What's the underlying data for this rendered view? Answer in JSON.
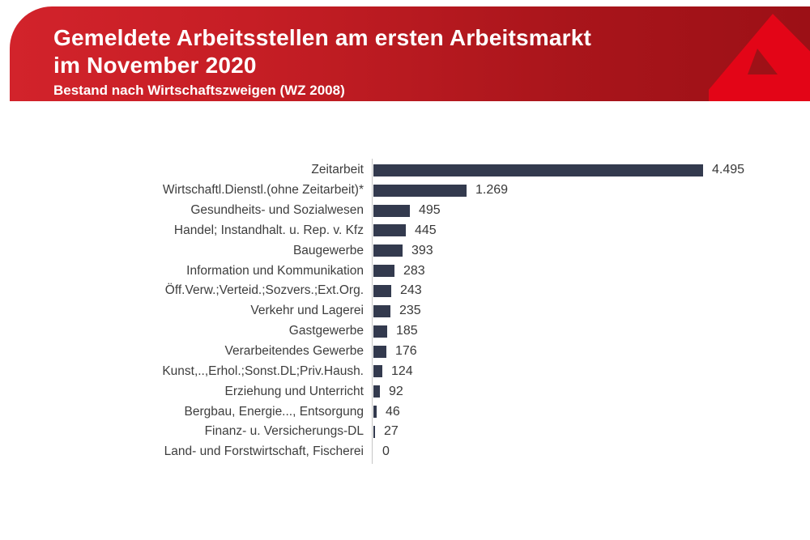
{
  "page": {
    "background": "#ffffff"
  },
  "header": {
    "title_line1": "Gemeldete Arbeitsstellen am ersten Arbeitsmarkt",
    "title_line2": "im November 2020",
    "subtitle": "Bestand nach Wirtschaftszweigen (WZ 2008)",
    "banner_color_left": "#d2232b",
    "banner_color_right": "#9c1016",
    "text_color": "#ffffff",
    "logo": "bundesagentur-fuer-arbeit-a-icon",
    "logo_color": "#e30517"
  },
  "chart_data": {
    "type": "bar",
    "orientation": "horizontal",
    "title": "Gemeldete Arbeitsstellen am ersten Arbeitsmarkt im November 2020",
    "subtitle": "Bestand nach Wirtschaftszweigen (WZ 2008)",
    "categories": [
      "Zeitarbeit",
      "Wirtschaftl.Dienstl.(ohne Zeitarbeit)*",
      "Gesundheits- und Sozialwesen",
      "Handel; Instandhalt. u. Rep. v. Kfz",
      "Baugewerbe",
      "Information und Kommunikation",
      "Öff.Verw.;Verteid.;Sozvers.;Ext.Org.",
      "Verkehr und Lagerei",
      "Gastgewerbe",
      "Verarbeitendes Gewerbe",
      "Kunst,..,Erhol.;Sonst.DL;Priv.Haush.",
      "Erziehung und Unterricht",
      "Bergbau, Energie..., Entsorgung",
      "Finanz- u. Versicherungs-DL",
      "Land- und Forstwirtschaft, Fischerei"
    ],
    "values": [
      4495,
      1269,
      495,
      445,
      393,
      283,
      243,
      235,
      185,
      176,
      124,
      92,
      46,
      27,
      0
    ],
    "value_labels": [
      "4.495",
      "1.269",
      "495",
      "445",
      "393",
      "283",
      "243",
      "235",
      "185",
      "176",
      "124",
      "92",
      "46",
      "27",
      "0"
    ],
    "xlim": [
      0,
      4600
    ],
    "grid": false,
    "legend": null,
    "data_labels": "outside-end",
    "bar_color": "#333a4e",
    "axis_color": "#c6c6c6",
    "label_color": "#3d3d3d"
  }
}
